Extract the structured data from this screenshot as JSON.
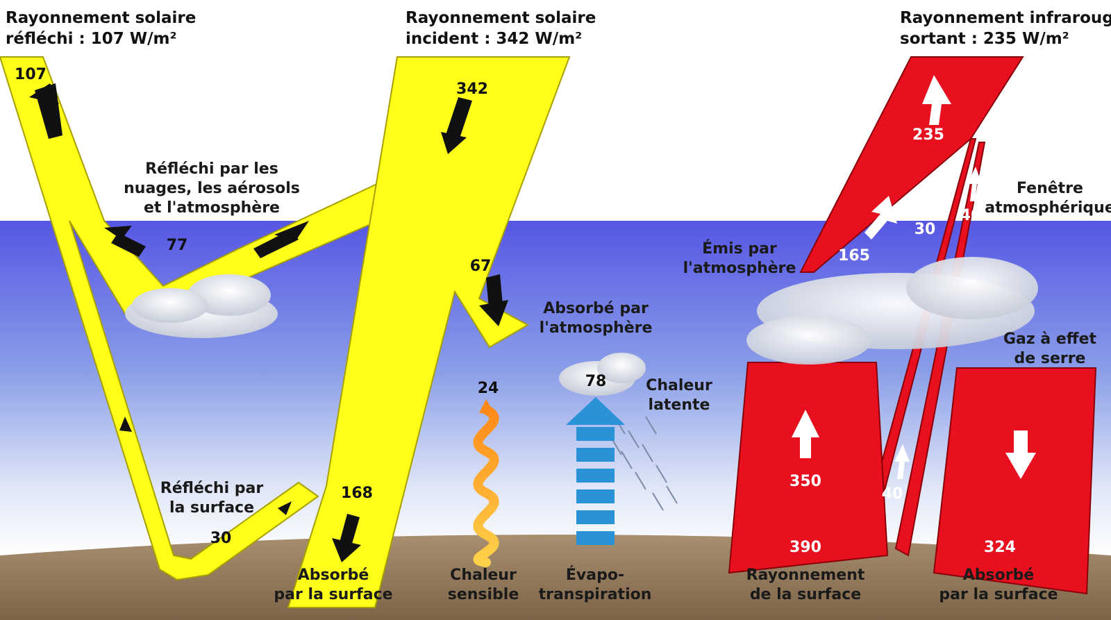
{
  "colors": {
    "solar": "#ffff1a",
    "infrared": "#e8101e",
    "sky_top": "#5a5ae6",
    "sky_bottom": "#ffffff",
    "ground": "#9a8060",
    "evapo_arrow": "#2a92d6"
  },
  "headers": {
    "reflected_line1": "Rayonnement solaire",
    "reflected_line2": "réfléchi : 107 W/m²",
    "incident_line1": "Rayonnement solaire",
    "incident_line2": "incident : 342 W/m²",
    "outgoing_line1": "Rayonnement infrarouge",
    "outgoing_line2": "sortant : 235 W/m²"
  },
  "labels": {
    "reflected_clouds_1": "Réfléchi par les",
    "reflected_clouds_2": "nuages, les aérosols",
    "reflected_clouds_3": "et l'atmosphère",
    "absorbed_atm_1": "Absorbé par",
    "absorbed_atm_2": "l'atmosphère",
    "reflected_surface_1": "Réfléchi par",
    "reflected_surface_2": "la surface",
    "absorbed_surface_1": "Absorbé",
    "absorbed_surface_2": "par la surface",
    "sensible_1": "Chaleur",
    "sensible_2": "sensible",
    "evapo_1": "Évapo-",
    "evapo_2": "transpiration",
    "latent_1": "Chaleur",
    "latent_2": "latente",
    "emitted_atm_1": "Émis par",
    "emitted_atm_2": "l'atmosphère",
    "window_1": "Fenêtre",
    "window_2": "atmosphérique",
    "greenhouse_1": "Gaz à effet",
    "greenhouse_2": "de serre",
    "surface_rad_1": "Rayonnement",
    "surface_rad_2": "de la surface",
    "absorbed_surface_ir_1": "Absorbé",
    "absorbed_surface_ir_2": "par la surface"
  },
  "values": {
    "reflected_total": "107",
    "incident": "342",
    "reflected_clouds": "77",
    "absorbed_atm": "67",
    "reflected_surface": "30",
    "absorbed_surface": "168",
    "sensible_heat": "24",
    "latent_heat": "78",
    "outgoing_ir": "235",
    "emitted_atm": "165",
    "window_30": "30",
    "window_40_top": "40",
    "window_40_bottom": "40",
    "surface_up": "350",
    "surface_total": "390",
    "back_radiation": "324"
  }
}
